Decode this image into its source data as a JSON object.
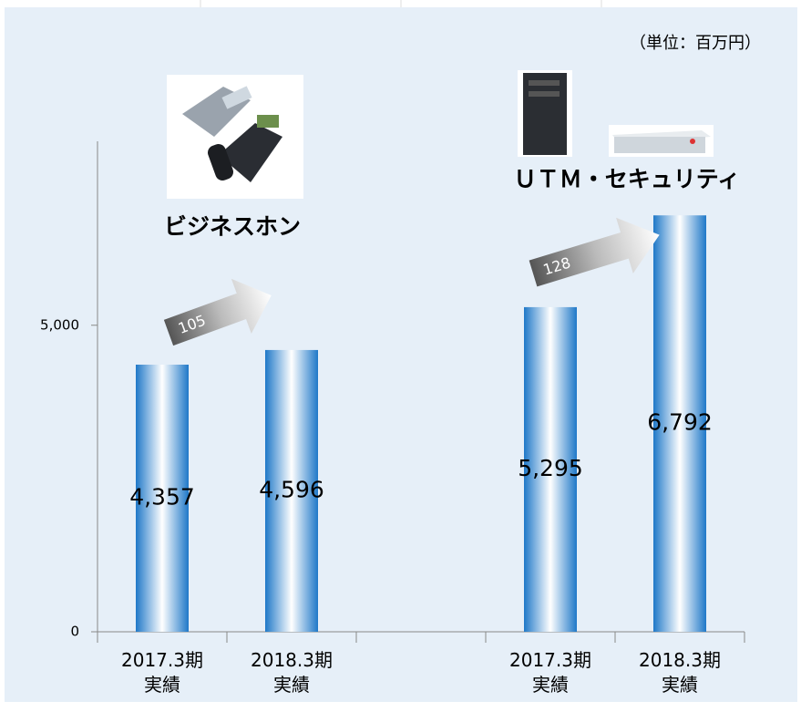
{
  "chart_data": {
    "type": "bar",
    "unit_note": "（単位：百万円）",
    "annotations": [
      "ビジネスホン",
      "ＵＴＭ・セキュリティ"
    ],
    "arrow_labels": [
      "105",
      "128"
    ],
    "categories": [
      "2017.3期\n実績",
      "2018.3期\n実績",
      null,
      "2017.3期\n実績",
      "2018.3期\n実績"
    ],
    "values": [
      4357,
      4596,
      null,
      5295,
      6792
    ],
    "value_labels": [
      "4,357",
      "4,596",
      null,
      "5,295",
      "6,792"
    ],
    "color": "#1f78c8",
    "ylim": [
      0,
      8000
    ],
    "yticks": [
      0,
      {
        "value": 5000,
        "label": "5,000"
      }
    ],
    "grid": false
  }
}
